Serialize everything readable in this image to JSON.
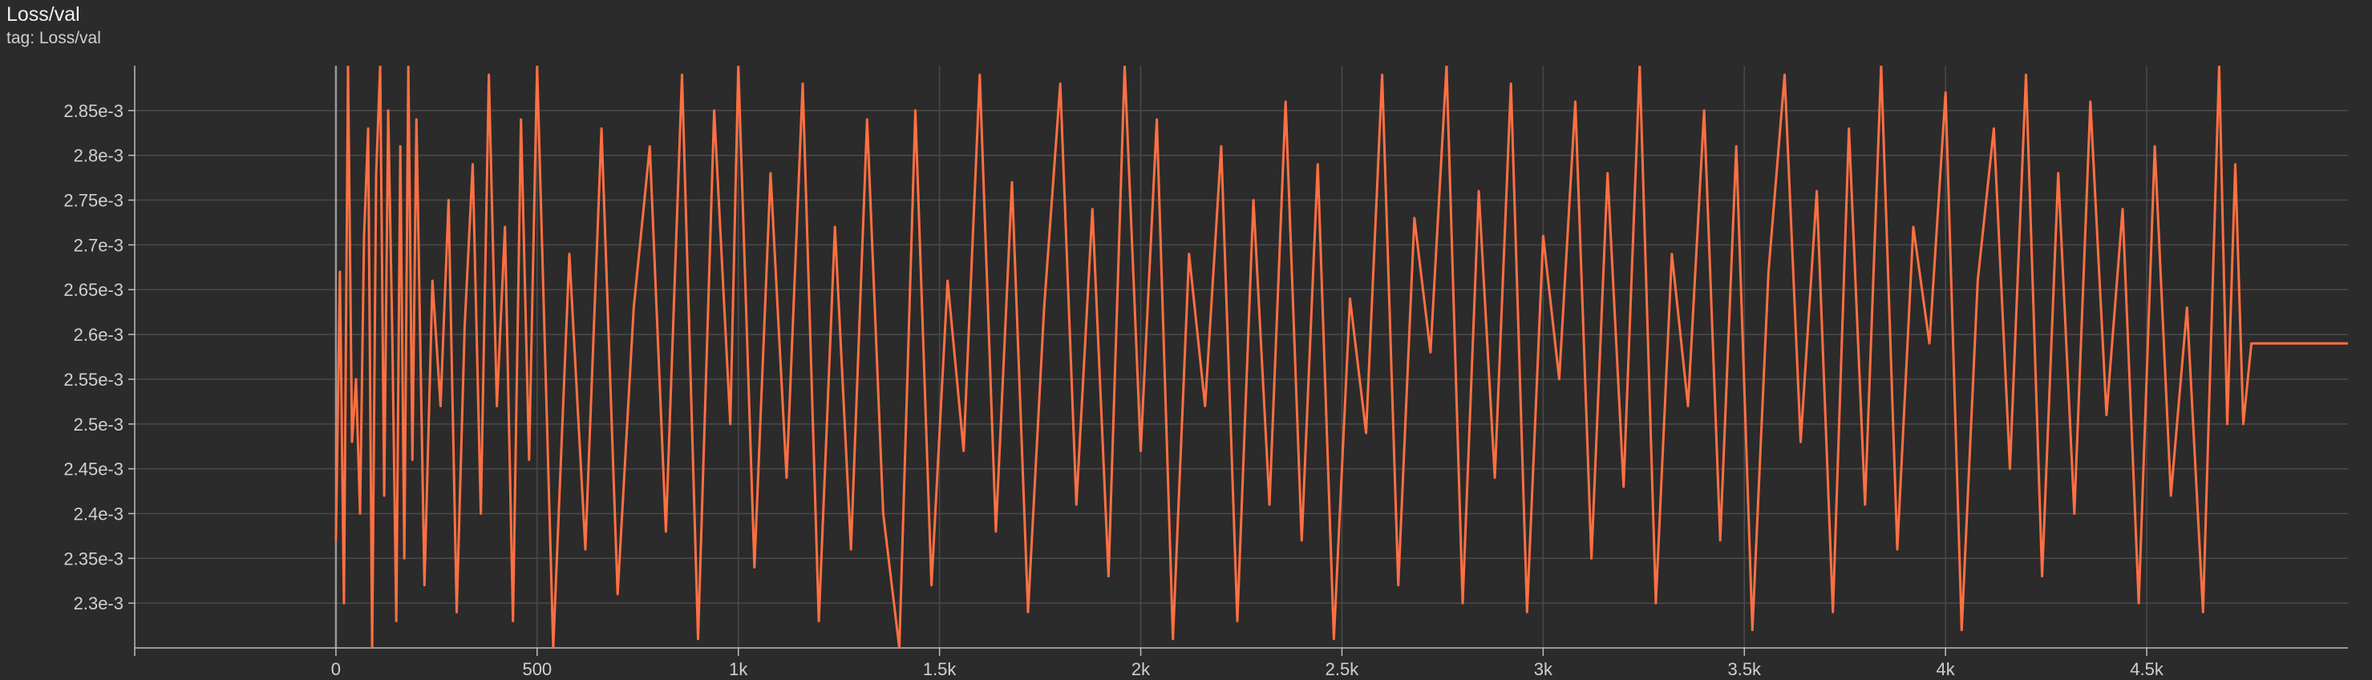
{
  "card": {
    "title": "Loss/val",
    "subtitle": "tag: Loss/val"
  },
  "colors": {
    "background": "#2b2b2b",
    "series": "#ff7043",
    "grid": "#4a4a4a",
    "axis": "#bdbdbd",
    "text": "#d0d0d0"
  },
  "chart_data": {
    "type": "line",
    "title": "Loss/val",
    "xlabel": "",
    "ylabel": "",
    "xlim": [
      -500,
      5000
    ],
    "ylim": [
      0.00225,
      0.0029
    ],
    "grid": true,
    "legend": "none",
    "x_ticks": [
      {
        "value": 0,
        "label": "0"
      },
      {
        "value": 500,
        "label": "500"
      },
      {
        "value": 1000,
        "label": "1k"
      },
      {
        "value": 1500,
        "label": "1.5k"
      },
      {
        "value": 2000,
        "label": "2k"
      },
      {
        "value": 2500,
        "label": "2.5k"
      },
      {
        "value": 3000,
        "label": "3k"
      },
      {
        "value": 3500,
        "label": "3.5k"
      },
      {
        "value": 4000,
        "label": "4k"
      },
      {
        "value": 4500,
        "label": "4.5k"
      }
    ],
    "y_ticks": [
      {
        "value": 0.0023,
        "label": "2.3e-3"
      },
      {
        "value": 0.00235,
        "label": "2.35e-3"
      },
      {
        "value": 0.0024,
        "label": "2.4e-3"
      },
      {
        "value": 0.00245,
        "label": "2.45e-3"
      },
      {
        "value": 0.0025,
        "label": "2.5e-3"
      },
      {
        "value": 0.00255,
        "label": "2.55e-3"
      },
      {
        "value": 0.0026,
        "label": "2.6e-3"
      },
      {
        "value": 0.00265,
        "label": "2.65e-3"
      },
      {
        "value": 0.0027,
        "label": "2.7e-3"
      },
      {
        "value": 0.00275,
        "label": "2.75e-3"
      },
      {
        "value": 0.0028,
        "label": "2.8e-3"
      },
      {
        "value": 0.00285,
        "label": "2.85e-3"
      }
    ],
    "series": [
      {
        "x": [
          0,
          10,
          20,
          30,
          40,
          50,
          60,
          70,
          80,
          90,
          100,
          110,
          120,
          130,
          140,
          150,
          160,
          170,
          180,
          190,
          200,
          220,
          240,
          260,
          280,
          300,
          320,
          340,
          360,
          380,
          400,
          420,
          440,
          460,
          480,
          500,
          540,
          580,
          620,
          660,
          700,
          740,
          780,
          820,
          860,
          900,
          940,
          980,
          1000,
          1040,
          1080,
          1120,
          1160,
          1200,
          1240,
          1280,
          1320,
          1360,
          1400,
          1440,
          1480,
          1520,
          1560,
          1600,
          1640,
          1680,
          1720,
          1760,
          1800,
          1840,
          1880,
          1920,
          1960,
          2000,
          2040,
          2080,
          2120,
          2160,
          2200,
          2240,
          2280,
          2320,
          2360,
          2400,
          2440,
          2480,
          2520,
          2560,
          2600,
          2640,
          2680,
          2720,
          2760,
          2800,
          2840,
          2880,
          2920,
          2960,
          3000,
          3040,
          3080,
          3120,
          3160,
          3200,
          3240,
          3280,
          3320,
          3360,
          3400,
          3440,
          3480,
          3520,
          3560,
          3600,
          3640,
          3680,
          3720,
          3760,
          3800,
          3840,
          3880,
          3920,
          3960,
          4000,
          4040,
          4080,
          4120,
          4160,
          4200,
          4240,
          4280,
          4320,
          4360,
          4400,
          4440,
          4480,
          4520,
          4560,
          4600,
          4640,
          4680,
          4700,
          4720,
          4740,
          4760,
          5000
        ],
        "y": [
          0.00237,
          0.00267,
          0.0023,
          0.0029,
          0.00248,
          0.00255,
          0.0024,
          0.00271,
          0.00283,
          0.00225,
          0.00278,
          0.0029,
          0.00242,
          0.00285,
          0.0026,
          0.00228,
          0.00281,
          0.00235,
          0.0029,
          0.00246,
          0.00284,
          0.00232,
          0.00266,
          0.00252,
          0.00275,
          0.00229,
          0.00261,
          0.00279,
          0.0024,
          0.00289,
          0.00252,
          0.00272,
          0.00228,
          0.00284,
          0.00246,
          0.0029,
          0.00225,
          0.00269,
          0.00236,
          0.00283,
          0.00231,
          0.00263,
          0.00281,
          0.00238,
          0.00289,
          0.00226,
          0.00285,
          0.0025,
          0.0029,
          0.00234,
          0.00278,
          0.00244,
          0.00288,
          0.00228,
          0.00272,
          0.00236,
          0.00284,
          0.0024,
          0.00225,
          0.00285,
          0.00232,
          0.00266,
          0.00247,
          0.00289,
          0.00238,
          0.00277,
          0.00229,
          0.00263,
          0.00288,
          0.00241,
          0.00274,
          0.00233,
          0.0029,
          0.00247,
          0.00284,
          0.00226,
          0.00269,
          0.00252,
          0.00281,
          0.00228,
          0.00275,
          0.00241,
          0.00286,
          0.00237,
          0.00279,
          0.00226,
          0.00264,
          0.00249,
          0.00289,
          0.00232,
          0.00273,
          0.00258,
          0.0029,
          0.0023,
          0.00276,
          0.00244,
          0.00288,
          0.00229,
          0.00271,
          0.00255,
          0.00286,
          0.00235,
          0.00278,
          0.00243,
          0.0029,
          0.0023,
          0.00269,
          0.00252,
          0.00285,
          0.00237,
          0.00281,
          0.00227,
          0.00267,
          0.00289,
          0.00248,
          0.00276,
          0.00229,
          0.00283,
          0.00241,
          0.0029,
          0.00236,
          0.00272,
          0.00259,
          0.00287,
          0.00227,
          0.00266,
          0.00283,
          0.00245,
          0.00289,
          0.00233,
          0.00278,
          0.0024,
          0.00286,
          0.00251,
          0.00274,
          0.0023,
          0.00281,
          0.00242,
          0.00263,
          0.00229,
          0.0029,
          0.0025,
          0.00279,
          0.0025,
          0.00259,
          0.00259
        ]
      }
    ]
  }
}
